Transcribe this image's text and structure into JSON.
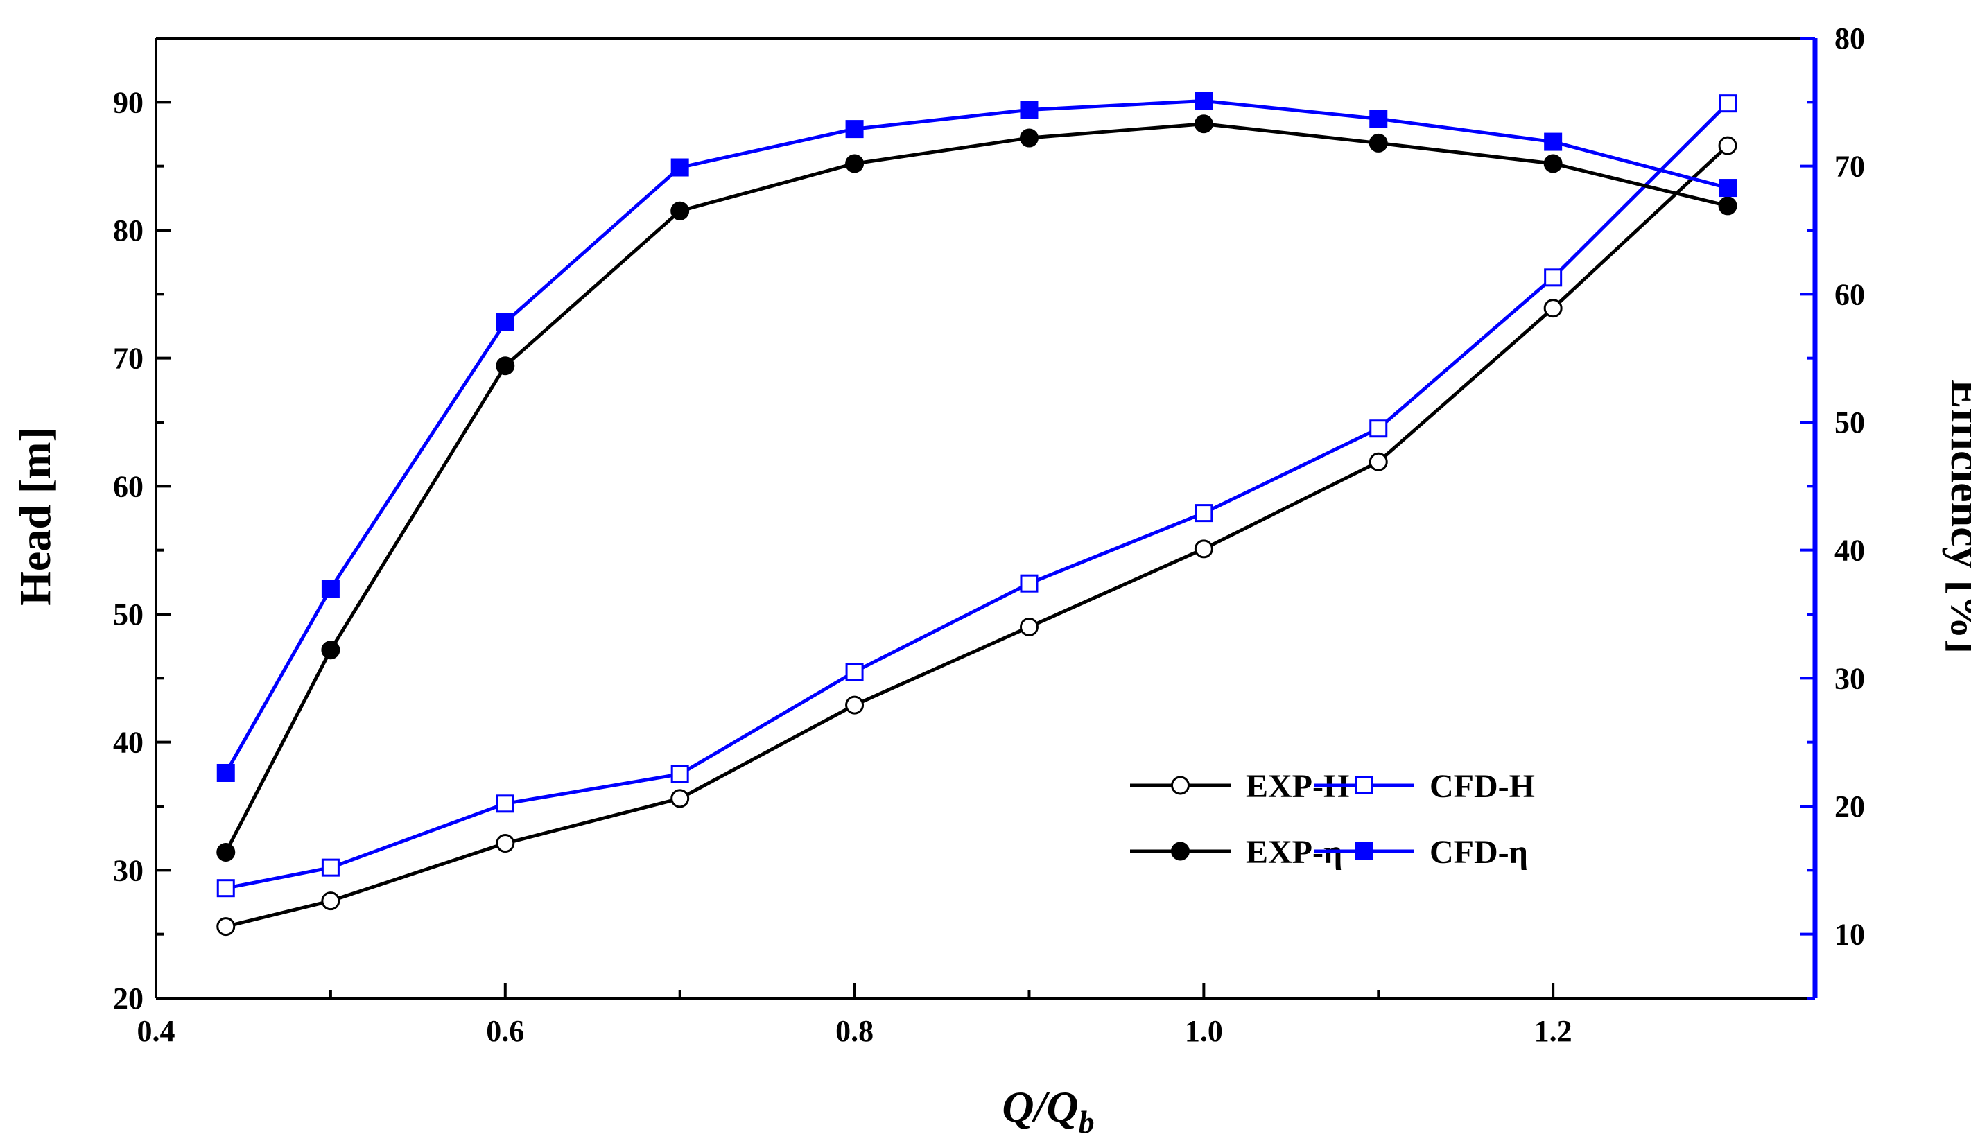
{
  "chart_data": {
    "type": "line",
    "title": "",
    "xlabel": "Q/Q",
    "xlabel_sub": "b",
    "ylabel": "Head [m]",
    "y2label": "Efficiency [%]",
    "xlim": [
      0.4,
      1.35
    ],
    "ylim": [
      20,
      95
    ],
    "y2lim": [
      5,
      80
    ],
    "x_ticks": [
      0.4,
      0.6,
      0.8,
      1.0,
      1.2
    ],
    "x_tick_labels": [
      "0.4",
      "0.6",
      "0.8",
      "1.0",
      "1.2"
    ],
    "y_ticks": [
      20,
      30,
      40,
      50,
      60,
      70,
      80,
      90
    ],
    "y_tick_labels": [
      "20",
      "30",
      "40",
      "50",
      "60",
      "70",
      "80",
      "90"
    ],
    "y2_ticks": [
      10,
      20,
      30,
      40,
      50,
      60,
      70,
      80
    ],
    "y2_tick_labels": [
      "10",
      "20",
      "30",
      "40",
      "50",
      "60",
      "70",
      "80"
    ],
    "grid": false,
    "legend_position": "bottom-right",
    "x": [
      0.44,
      0.5,
      0.6,
      0.7,
      0.8,
      0.9,
      1.0,
      1.1,
      1.2,
      1.3
    ],
    "series": [
      {
        "name": "EXP-H",
        "axis": "left",
        "color": "#000000",
        "marker": "circle-open",
        "values": [
          25.6,
          27.6,
          32.1,
          35.6,
          42.9,
          49.0,
          55.1,
          61.9,
          73.9,
          86.6
        ]
      },
      {
        "name": "CFD-H",
        "axis": "left",
        "color": "#0000ff",
        "marker": "square-open",
        "values": [
          28.6,
          30.2,
          35.2,
          37.5,
          45.5,
          52.4,
          57.9,
          64.5,
          76.3,
          89.9
        ]
      },
      {
        "name": "EXP-η",
        "axis": "right",
        "color": "#000000",
        "marker": "circle-filled",
        "values": [
          16.4,
          32.2,
          54.4,
          66.5,
          70.2,
          72.2,
          73.3,
          71.8,
          70.2,
          66.9
        ]
      },
      {
        "name": "CFD-η",
        "axis": "right",
        "color": "#0000ff",
        "marker": "square-filled",
        "values": [
          22.6,
          37.0,
          57.8,
          69.9,
          72.9,
          74.4,
          75.1,
          73.7,
          71.9,
          68.3
        ]
      }
    ]
  }
}
